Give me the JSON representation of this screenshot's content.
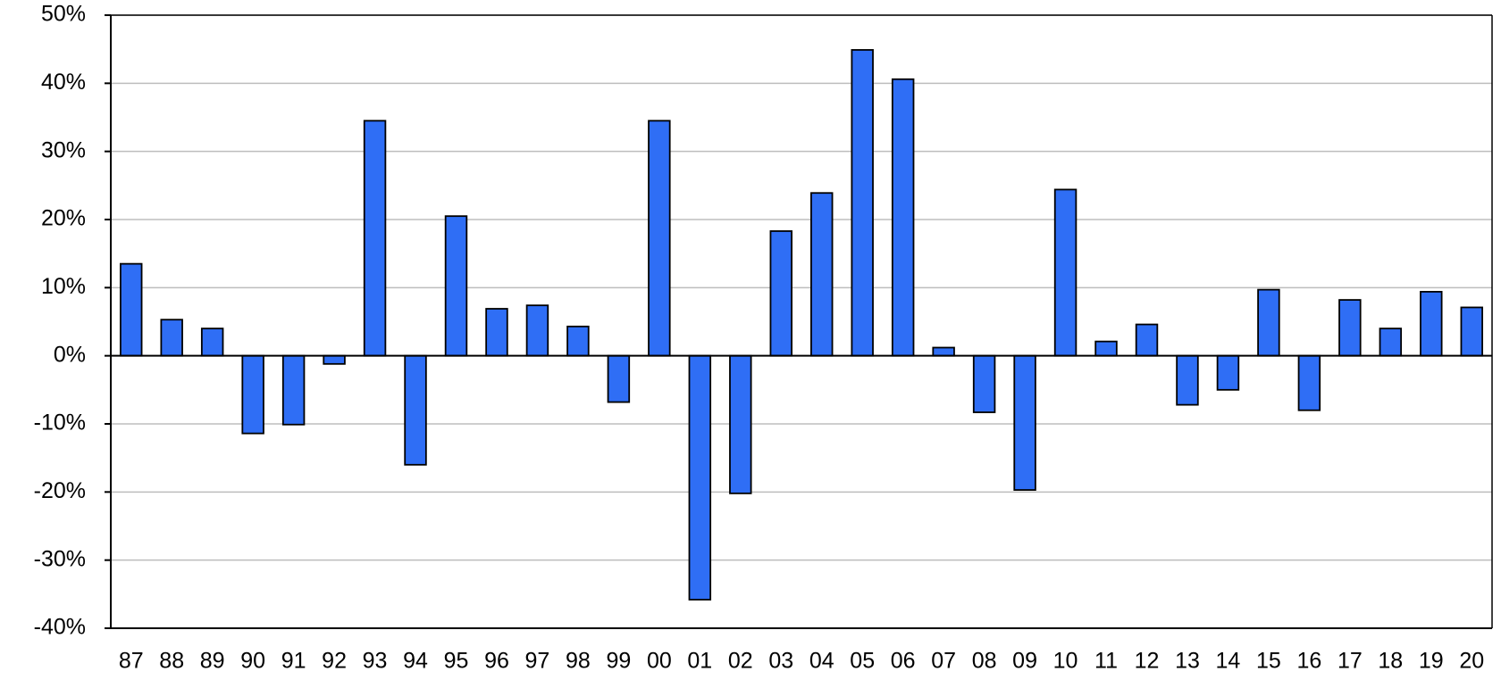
{
  "chart_data": {
    "type": "bar",
    "categories": [
      "87",
      "88",
      "89",
      "90",
      "91",
      "92",
      "93",
      "94",
      "95",
      "96",
      "97",
      "98",
      "99",
      "00",
      "01",
      "02",
      "03",
      "04",
      "05",
      "06",
      "07",
      "08",
      "09",
      "10",
      "11",
      "12",
      "13",
      "14",
      "15",
      "16",
      "17",
      "18",
      "19",
      "20"
    ],
    "values": [
      13.5,
      5.3,
      4.0,
      -11.4,
      -10.1,
      -1.2,
      34.5,
      -16.0,
      20.5,
      6.9,
      7.4,
      4.3,
      -6.8,
      34.5,
      -35.8,
      -20.2,
      18.3,
      23.9,
      44.9,
      40.6,
      1.2,
      -8.3,
      -19.7,
      24.4,
      2.1,
      4.6,
      -7.2,
      -5.0,
      9.7,
      -8.0,
      8.2,
      4.0,
      9.4,
      7.1
    ],
    "color": "#2f6ef5",
    "ylim": [
      -40,
      50
    ],
    "yticks": [
      {
        "value": -40,
        "label": "-40%"
      },
      {
        "value": -30,
        "label": "-30%"
      },
      {
        "value": -20,
        "label": "-20%"
      },
      {
        "value": -10,
        "label": "-10%"
      },
      {
        "value": 0,
        "label": "0%"
      },
      {
        "value": 10,
        "label": "10%"
      },
      {
        "value": 20,
        "label": "20%"
      },
      {
        "value": 30,
        "label": "30%"
      },
      {
        "value": 40,
        "label": "40%"
      },
      {
        "value": 50,
        "label": "50%"
      }
    ],
    "grid": true
  }
}
